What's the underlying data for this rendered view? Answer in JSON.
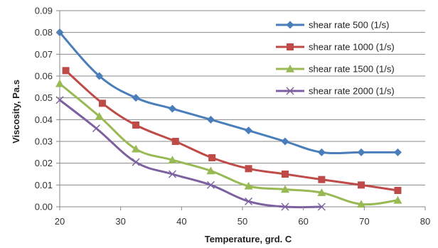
{
  "chart_data": {
    "type": "line",
    "title": "",
    "xlabel": "Temperature, grd. C",
    "ylabel": "Viscosity, Pa.s",
    "xlim": [
      20,
      80
    ],
    "ylim": [
      0,
      0.09
    ],
    "xticks": [
      20,
      30,
      40,
      50,
      60,
      70,
      80
    ],
    "yticks": [
      0,
      0.01,
      0.02,
      0.03,
      0.04,
      0.05,
      0.06,
      0.07,
      0.08,
      0.09
    ],
    "xtick_labels": [
      "20",
      "30",
      "40",
      "50",
      "60",
      "70",
      "80"
    ],
    "ytick_labels": [
      "0.00",
      "0.01",
      "0.02",
      "0.03",
      "0.04",
      "0.05",
      "0.06",
      "0.07",
      "0.08",
      "0.09"
    ],
    "grid": "horizontal",
    "legend_position": "top-right",
    "series": [
      {
        "name": "shear rate 500 (1/s)",
        "color": "#4a7ebb",
        "marker": "diamond",
        "x": [
          20,
          26.5,
          32.5,
          38.5,
          44.8,
          51,
          57,
          63,
          69.5,
          75.5
        ],
        "y": [
          0.08,
          0.06,
          0.05,
          0.045,
          0.04,
          0.035,
          0.03,
          0.025,
          0.025,
          0.025
        ]
      },
      {
        "name": "shear rate 1000 (1/s)",
        "color": "#be4b48",
        "marker": "square",
        "x": [
          21,
          27,
          32.5,
          39,
          45,
          51,
          57,
          63,
          69.5,
          75.5
        ],
        "y": [
          0.0625,
          0.0475,
          0.0375,
          0.03,
          0.0225,
          0.0175,
          0.015,
          0.0125,
          0.01,
          0.0075
        ]
      },
      {
        "name": "shear rate 1500 (1/s)",
        "color": "#98b954",
        "marker": "triangle",
        "x": [
          20,
          26.5,
          32.5,
          38.5,
          44.8,
          51,
          57,
          63,
          69.5,
          75.5
        ],
        "y": [
          0.0565,
          0.0415,
          0.0265,
          0.0215,
          0.0165,
          0.0095,
          0.008,
          0.0065,
          0.0012,
          0.003
        ]
      },
      {
        "name": "shear rate 2000 (1/s)",
        "color": "#7d60a0",
        "marker": "x",
        "x": [
          20,
          26,
          32.5,
          38.5,
          44.8,
          51,
          57,
          63
        ],
        "y": [
          0.049,
          0.036,
          0.0205,
          0.015,
          0.01,
          0.0025,
          0,
          0
        ]
      }
    ]
  }
}
